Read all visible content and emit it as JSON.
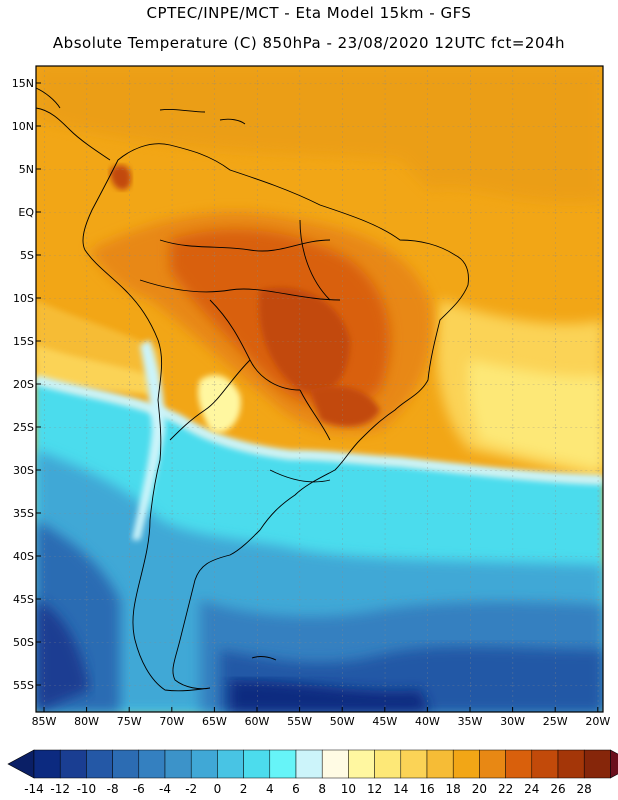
{
  "header": {
    "line1": "CPTEC/INPE/MCT -  Eta Model 15km - GFS",
    "line2": "Absolute Temperature (C) 850hPa - 23/08/2020 12UTC fct=204h"
  },
  "latitude_labels": [
    "15N",
    "10N",
    "5N",
    "EQ",
    "5S",
    "10S",
    "15S",
    "20S",
    "25S",
    "30S",
    "35S",
    "40S",
    "45S",
    "50S",
    "55S"
  ],
  "longitude_labels": [
    "85W",
    "80W",
    "75W",
    "70W",
    "65W",
    "60W",
    "55W",
    "50W",
    "45W",
    "40W",
    "35W",
    "30W",
    "25W",
    "20W"
  ],
  "colorbar": {
    "labels": [
      "-14",
      "-12",
      "-10",
      "-8",
      "-6",
      "-4",
      "-2",
      "0",
      "2",
      "4",
      "6",
      "8",
      "10",
      "12",
      "14",
      "16",
      "18",
      "20",
      "22",
      "24",
      "26",
      "28"
    ],
    "colors": [
      "#0c2a80",
      "#1a3e92",
      "#2458a6",
      "#2c6cb3",
      "#3480c0",
      "#3c93c9",
      "#40a8d6",
      "#48c4e4",
      "#4cdced",
      "#66f4f8",
      "#ccf4fa",
      "#fffbe4",
      "#fff7a0",
      "#fde877",
      "#fbd356",
      "#f6bc36",
      "#f2a616",
      "#e88814",
      "#d9600c",
      "#c24a0a",
      "#a43608",
      "#86260a"
    ],
    "under_color": "#0a1f66",
    "over_color": "#6a0f1c"
  },
  "colors": {
    "warm_bg": "#f2a616",
    "ocean_cold": "#40a8d6",
    "ocean_coldest": "#1a3e92",
    "land_hot": "#d9600c"
  }
}
